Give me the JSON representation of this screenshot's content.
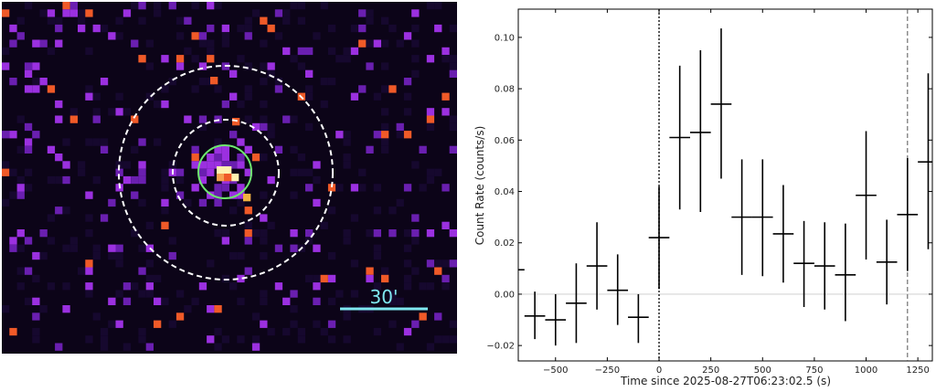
{
  "image_panel": {
    "scale_bar_label": "30'",
    "colors": {
      "background": "#0c0418",
      "faint_pixel": "#6a1fb0",
      "medium_pixel": "#9b30e0",
      "bright_pixel": "#f05a28",
      "hot_pixel": "#fff2b0",
      "source_circle": "#6ee86e",
      "scale_bar": "#7fe8f0",
      "dashed_ring": "#ffffff"
    }
  },
  "chart_data": {
    "type": "errorbar",
    "xlabel": "Time since 2025-08-27T06:23:02.5 (s)",
    "ylabel": "Count Rate (counts/s)",
    "xlim": [
      -680,
      1320
    ],
    "ylim": [
      -0.026,
      0.111
    ],
    "xticks": [
      -500,
      -250,
      0,
      250,
      500,
      750,
      1000,
      1250
    ],
    "xtick_labels": [
      "−500",
      "−250",
      "0",
      "250",
      "500",
      "750",
      "1000",
      "1250"
    ],
    "yticks": [
      -0.02,
      0.0,
      0.02,
      0.04,
      0.06,
      0.08,
      0.1
    ],
    "ytick_labels": [
      "−0.02",
      "0.00",
      "0.02",
      "0.04",
      "0.06",
      "0.08",
      "0.10"
    ],
    "trigger_time": 0,
    "end_marker_time": 1200,
    "points": [
      {
        "x": -700,
        "xerr": 50,
        "y": 0.0095,
        "ylo": 0.0095,
        "yhi": 0.0095
      },
      {
        "x": -600,
        "xerr": 50,
        "y": -0.0085,
        "ylo": -0.0175,
        "yhi": 0.001
      },
      {
        "x": -500,
        "xerr": 50,
        "y": -0.01,
        "ylo": -0.02,
        "yhi": 0.0
      },
      {
        "x": -400,
        "xerr": 50,
        "y": -0.0035,
        "ylo": -0.019,
        "yhi": 0.012
      },
      {
        "x": -300,
        "xerr": 50,
        "y": 0.011,
        "ylo": -0.006,
        "yhi": 0.028
      },
      {
        "x": -200,
        "xerr": 50,
        "y": 0.0015,
        "ylo": -0.012,
        "yhi": 0.0155
      },
      {
        "x": -100,
        "xerr": 50,
        "y": -0.009,
        "ylo": -0.019,
        "yhi": 0.0
      },
      {
        "x": 0,
        "xerr": 50,
        "y": 0.022,
        "ylo": 0.002,
        "yhi": 0.042
      },
      {
        "x": 100,
        "xerr": 50,
        "y": 0.061,
        "ylo": 0.033,
        "yhi": 0.089
      },
      {
        "x": 200,
        "xerr": 50,
        "y": 0.063,
        "ylo": 0.032,
        "yhi": 0.095
      },
      {
        "x": 300,
        "xerr": 50,
        "y": 0.074,
        "ylo": 0.045,
        "yhi": 0.1035
      },
      {
        "x": 400,
        "xerr": 50,
        "y": 0.03,
        "ylo": 0.0075,
        "yhi": 0.0525
      },
      {
        "x": 500,
        "xerr": 50,
        "y": 0.03,
        "ylo": 0.007,
        "yhi": 0.0525
      },
      {
        "x": 600,
        "xerr": 50,
        "y": 0.0235,
        "ylo": 0.0045,
        "yhi": 0.0425
      },
      {
        "x": 700,
        "xerr": 50,
        "y": 0.012,
        "ylo": -0.005,
        "yhi": 0.0285
      },
      {
        "x": 800,
        "xerr": 50,
        "y": 0.011,
        "ylo": -0.006,
        "yhi": 0.028
      },
      {
        "x": 900,
        "xerr": 50,
        "y": 0.0075,
        "ylo": -0.0105,
        "yhi": 0.0275
      },
      {
        "x": 1000,
        "xerr": 50,
        "y": 0.0385,
        "ylo": 0.0135,
        "yhi": 0.0635
      },
      {
        "x": 1100,
        "xerr": 50,
        "y": 0.0125,
        "ylo": -0.004,
        "yhi": 0.029
      },
      {
        "x": 1200,
        "xerr": 50,
        "y": 0.031,
        "ylo": 0.009,
        "yhi": 0.053
      },
      {
        "x": 1300,
        "xerr": 50,
        "y": 0.0515,
        "ylo": 0.0175,
        "yhi": 0.086
      }
    ],
    "grid": false,
    "zero_line": true
  }
}
